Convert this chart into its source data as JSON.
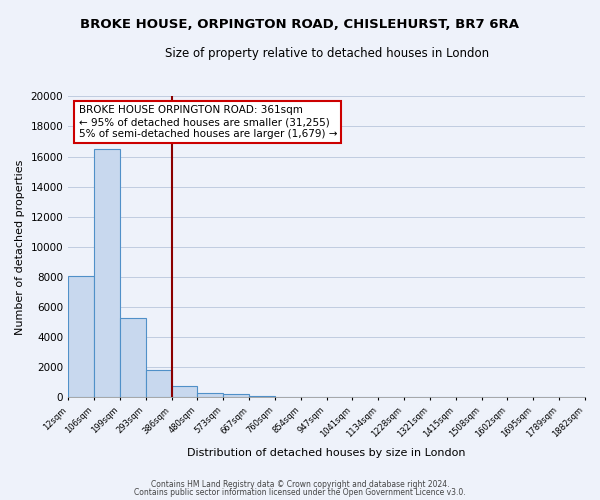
{
  "title": "BROKE HOUSE, ORPINGTON ROAD, CHISLEHURST, BR7 6RA",
  "subtitle": "Size of property relative to detached houses in London",
  "xlabel": "Distribution of detached houses by size in London",
  "ylabel": "Number of detached properties",
  "bar_values": [
    8100,
    16500,
    5300,
    1850,
    750,
    320,
    230,
    130,
    0,
    0,
    0,
    0,
    0,
    0,
    0,
    0,
    0,
    0,
    0,
    0
  ],
  "bar_labels": [
    "12sqm",
    "106sqm",
    "199sqm",
    "293sqm",
    "386sqm",
    "480sqm",
    "573sqm",
    "667sqm",
    "760sqm",
    "854sqm",
    "947sqm",
    "1041sqm",
    "1134sqm",
    "1228sqm",
    "1321sqm",
    "1415sqm",
    "1508sqm",
    "1602sqm",
    "1695sqm",
    "1789sqm",
    "1882sqm"
  ],
  "bar_color": "#c8d8ee",
  "bar_edge_color": "#5090c8",
  "ylim": [
    0,
    20000
  ],
  "yticks": [
    0,
    2000,
    4000,
    6000,
    8000,
    10000,
    12000,
    14000,
    16000,
    18000,
    20000
  ],
  "vline_x": 4.0,
  "vline_color": "#8b0000",
  "annotation_title": "BROKE HOUSE ORPINGTON ROAD: 361sqm",
  "annotation_line1": "← 95% of detached houses are smaller (31,255)",
  "annotation_line2": "5% of semi-detached houses are larger (1,679) →",
  "annotation_box_color": "#ffffff",
  "annotation_box_edge": "#cc0000",
  "footer1": "Contains HM Land Registry data © Crown copyright and database right 2024.",
  "footer2": "Contains public sector information licensed under the Open Government Licence v3.0.",
  "background_color": "#eef2fa",
  "grid_color": "#c0cce0"
}
